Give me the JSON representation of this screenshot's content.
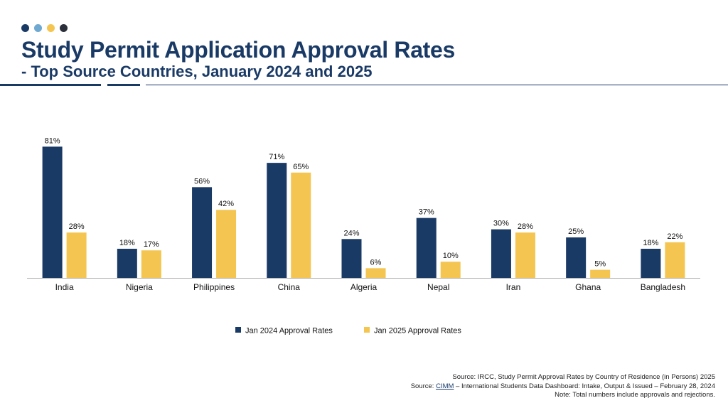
{
  "colors": {
    "navy": "#1a3a66",
    "yellow": "#f4c550",
    "dot_colors": [
      "#1a3a66",
      "#6fa8d0",
      "#f4c550",
      "#2b2f3a"
    ]
  },
  "header": {
    "title": "Study Permit Application Approval Rates",
    "subtitle": "- Top Source Countries, January 2024 and 2025"
  },
  "chart_data": {
    "type": "bar",
    "categories": [
      "India",
      "Nigeria",
      "Philippines",
      "China",
      "Algeria",
      "Nepal",
      "Iran",
      "Ghana",
      "Bangladesh"
    ],
    "series": [
      {
        "name": "Jan 2024 Approval Rates",
        "color": "#1a3a66",
        "values": [
          81,
          18,
          56,
          71,
          24,
          37,
          30,
          25,
          18
        ]
      },
      {
        "name": "Jan 2025 Approval Rates",
        "color": "#f4c550",
        "values": [
          28,
          17,
          42,
          65,
          6,
          10,
          28,
          5,
          22
        ]
      }
    ],
    "data_label_suffix": "%",
    "ylim": [
      0,
      85
    ],
    "legend": "bottom-center",
    "grid": false
  },
  "footer": {
    "line1": "Source: IRCC, Study Permit Approval Rates by Country of Residence (in Persons) 2025",
    "line2_prefix": "Source: ",
    "line2_link": "CIMM",
    "line2_suffix": " – International Students Data Dashboard: Intake, Output & Issued – February 28, 2024",
    "line3": "Note: Total numbers include approvals and rejections."
  }
}
